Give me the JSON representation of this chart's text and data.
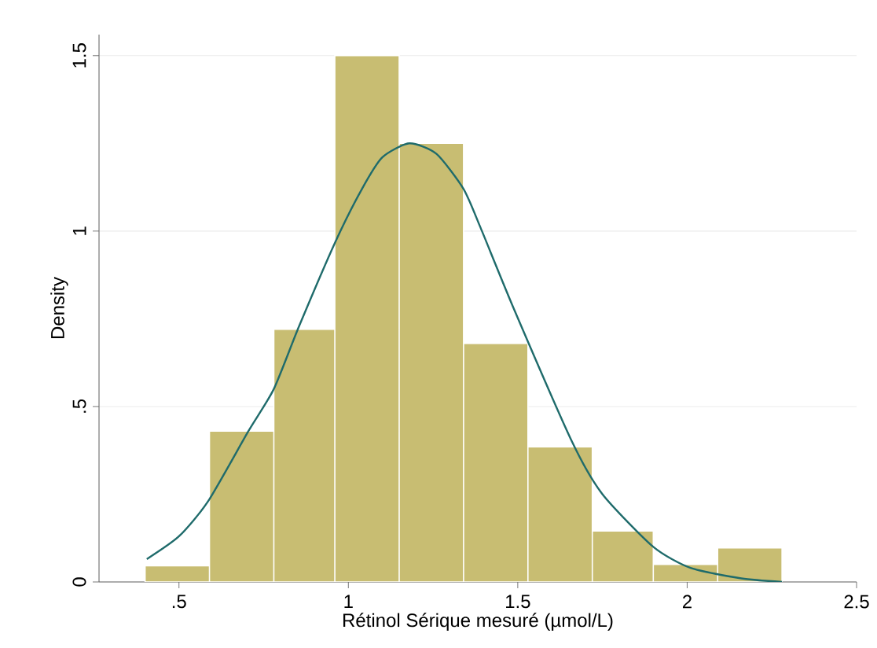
{
  "chart_data": {
    "type": "histogram",
    "xlabel": "Rétinol Sérique mesuré (µmol/L)",
    "ylabel": "Density",
    "bins": [
      0.4,
      0.59,
      0.78,
      0.96,
      1.15,
      1.34,
      1.53,
      1.72,
      1.9,
      2.09,
      2.28
    ],
    "values": [
      0.046,
      0.43,
      0.72,
      1.5,
      1.25,
      0.68,
      0.385,
      0.145,
      0.05,
      0.097
    ],
    "color": "#c8bd72",
    "series": [
      {
        "type": "line",
        "color": "#1f6b6b",
        "x": [
          0.405,
          0.5,
          0.586,
          0.705,
          0.78,
          0.855,
          0.962,
          1.04,
          1.1,
          1.18,
          1.26,
          1.34,
          1.39,
          1.49,
          1.66,
          1.75,
          1.9,
          2.01,
          2.16,
          2.28
        ],
        "values": [
          0.065,
          0.13,
          0.23,
          0.43,
          0.55,
          0.73,
          0.97,
          1.12,
          1.21,
          1.25,
          1.22,
          1.12,
          1.01,
          0.775,
          0.4,
          0.25,
          0.1,
          0.04,
          0.01,
          0.0
        ]
      }
    ],
    "xlim": [
      0.264,
      2.5
    ],
    "ylim": [
      0,
      1.56
    ],
    "xticks": [
      {
        "value": 0.5,
        "label": ".5"
      },
      1,
      1.5,
      2,
      {
        "value": 2.5,
        "label": "2.5"
      }
    ],
    "yticks": [
      0,
      {
        "value": 0.5,
        "label": ".5"
      },
      1,
      1.5
    ],
    "grid": "y"
  }
}
